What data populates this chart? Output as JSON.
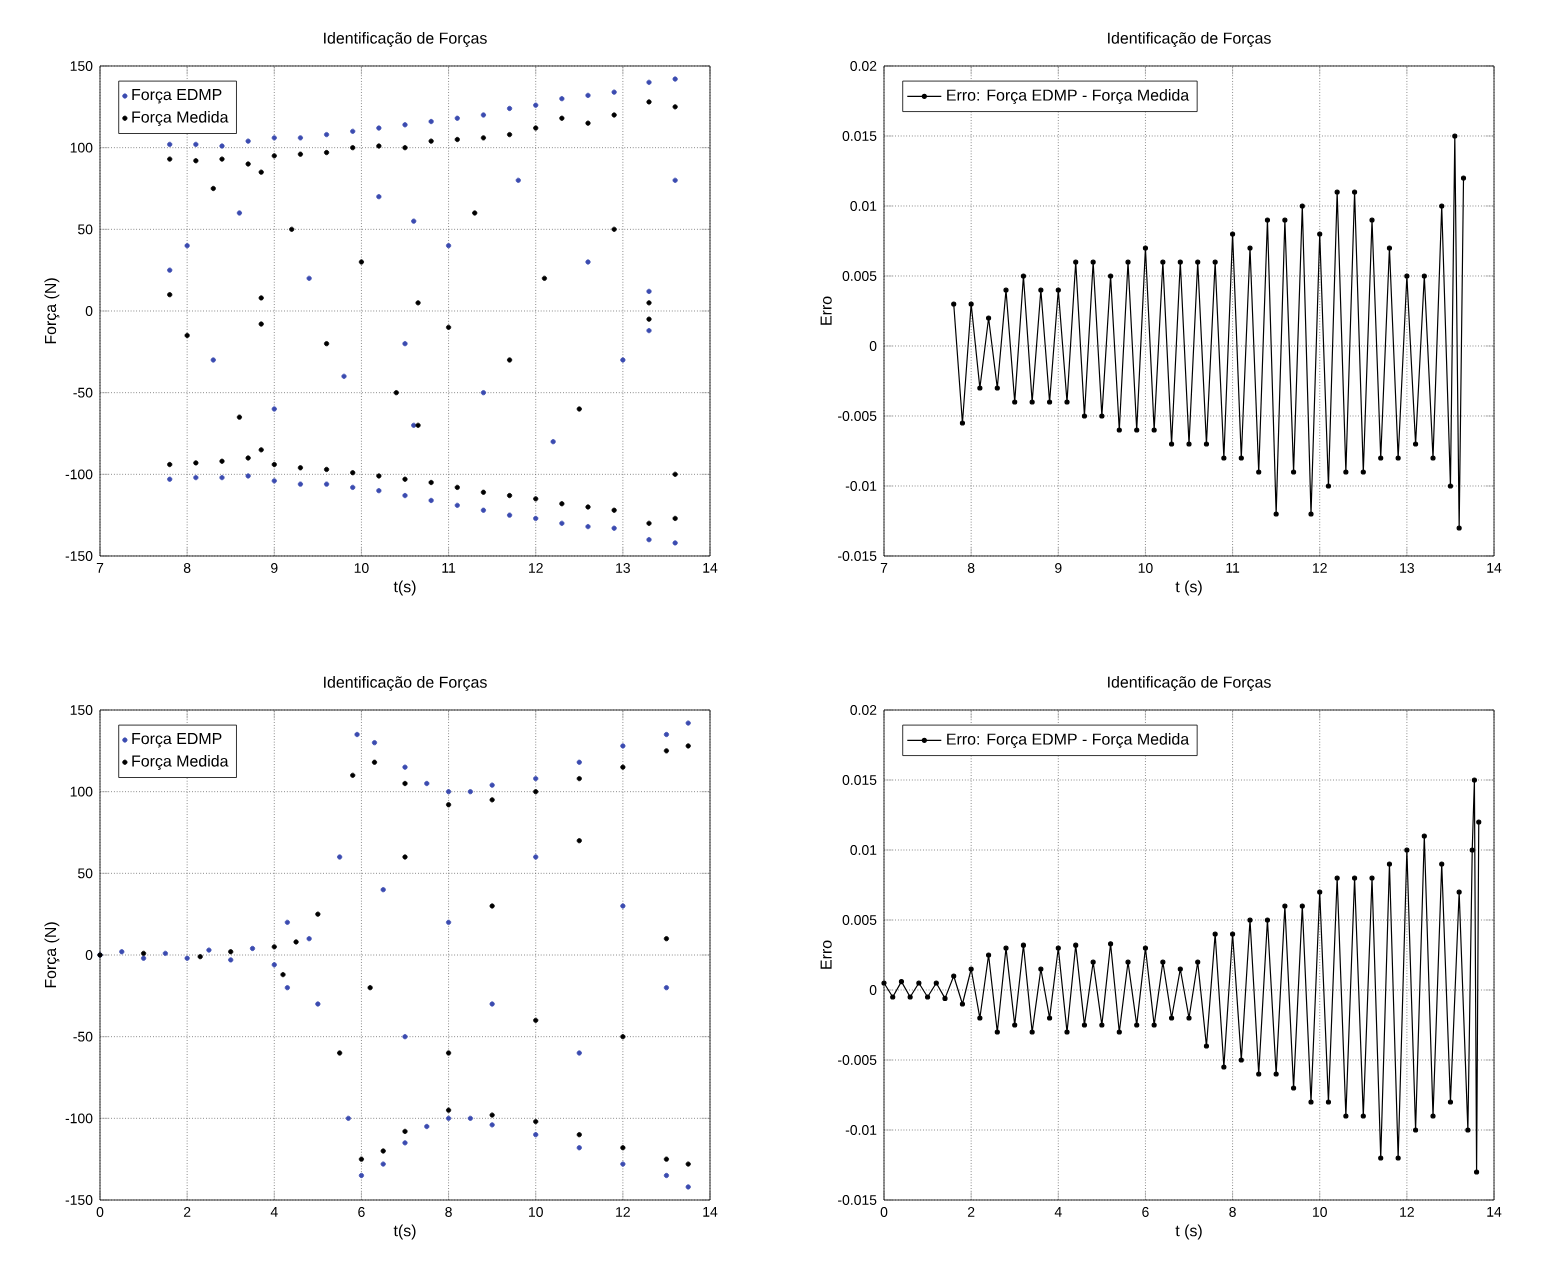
{
  "chart_data": [
    {
      "type": "scatter",
      "title": "Identificação de Forças",
      "xlabel": "t(s)",
      "ylabel": "Força (N)",
      "xlim": [
        7,
        14
      ],
      "ylim": [
        -150,
        150
      ],
      "xticks": [
        7,
        8,
        9,
        10,
        11,
        12,
        13,
        14
      ],
      "yticks": [
        -150,
        -100,
        -50,
        0,
        50,
        100,
        150
      ],
      "grid": true,
      "legend": "top left",
      "marker": "circle",
      "series": [
        {
          "name": "Força EDMP",
          "color": "#3b4bb0",
          "x": [
            7.8,
            8.1,
            8.4,
            8.7,
            9.0,
            9.3,
            9.6,
            9.9,
            10.2,
            10.5,
            10.8,
            11.1,
            11.4,
            11.7,
            12.0,
            12.3,
            12.6,
            12.9,
            13.3,
            13.6,
            7.8,
            8.1,
            8.4,
            8.7,
            9.0,
            9.3,
            9.6,
            9.9,
            10.2,
            10.5,
            10.8,
            11.1,
            11.4,
            11.7,
            12.0,
            12.3,
            12.6,
            12.9,
            13.3,
            13.6,
            7.8,
            8.0,
            8.3,
            8.6,
            9.0,
            9.4,
            9.8,
            10.2,
            10.5,
            10.6,
            10.6,
            11.0,
            11.4,
            11.8,
            12.2,
            12.6,
            13.0,
            13.3,
            13.3,
            13.6
          ],
          "values": [
            102,
            102,
            101,
            104,
            106,
            106,
            108,
            110,
            112,
            114,
            116,
            118,
            120,
            124,
            126,
            130,
            132,
            134,
            140,
            142,
            -103,
            -102,
            -102,
            -101,
            -104,
            -106,
            -106,
            -108,
            -110,
            -113,
            -116,
            -119,
            -122,
            -125,
            -127,
            -130,
            -132,
            -133,
            -140,
            -142,
            25,
            40,
            -30,
            60,
            -60,
            20,
            -40,
            70,
            -20,
            55,
            -70,
            40,
            -50,
            80,
            -80,
            30,
            -30,
            -12,
            12,
            80
          ]
        },
        {
          "name": "Força Medida",
          "color": "#000000",
          "x": [
            7.8,
            8.1,
            8.4,
            8.7,
            8.85,
            9.0,
            9.3,
            9.6,
            9.9,
            10.2,
            10.5,
            10.8,
            11.1,
            11.4,
            11.7,
            12.0,
            12.3,
            12.6,
            12.9,
            13.3,
            13.6,
            7.8,
            8.1,
            8.4,
            8.7,
            8.85,
            9.0,
            9.3,
            9.6,
            9.9,
            10.2,
            10.5,
            10.8,
            11.1,
            11.4,
            11.7,
            12.0,
            12.3,
            12.6,
            12.9,
            13.3,
            13.6,
            7.8,
            8.0,
            8.3,
            8.6,
            8.85,
            8.85,
            9.2,
            9.6,
            10.0,
            10.4,
            10.65,
            10.65,
            11.0,
            11.3,
            11.7,
            12.1,
            12.5,
            12.9,
            13.3,
            13.3,
            13.6
          ],
          "values": [
            93,
            92,
            93,
            90,
            85,
            95,
            96,
            97,
            100,
            101,
            100,
            104,
            105,
            106,
            108,
            112,
            118,
            115,
            120,
            128,
            125,
            -94,
            -93,
            -92,
            -90,
            -85,
            -94,
            -96,
            -97,
            -99,
            -101,
            -103,
            -105,
            -108,
            -111,
            -113,
            -115,
            -118,
            -120,
            -122,
            -130,
            -127,
            10,
            -15,
            75,
            -65,
            8,
            -8,
            50,
            -20,
            30,
            -50,
            5,
            -70,
            -10,
            60,
            -30,
            20,
            -60,
            50,
            5,
            -5,
            -100
          ]
        }
      ]
    },
    {
      "type": "line",
      "title": "Identificação de Forças",
      "xlabel": "t (s)",
      "ylabel": "Erro",
      "xlim": [
        7,
        14
      ],
      "ylim": [
        -0.015,
        0.02
      ],
      "xticks": [
        7,
        8,
        9,
        10,
        11,
        12,
        13,
        14
      ],
      "yticks": [
        -0.015,
        -0.01,
        -0.005,
        0,
        0.005,
        0.01,
        0.015,
        0.02
      ],
      "grid": true,
      "legend": "top left",
      "marker": "circle",
      "line_style": "solid",
      "series": [
        {
          "name": "Erro: Força EDMP - Força Medida",
          "color": "#000000",
          "x": [
            7.8,
            7.9,
            8.0,
            8.1,
            8.2,
            8.3,
            8.4,
            8.5,
            8.6,
            8.7,
            8.8,
            8.9,
            9.0,
            9.1,
            9.2,
            9.3,
            9.4,
            9.5,
            9.6,
            9.7,
            9.8,
            9.9,
            10.0,
            10.1,
            10.2,
            10.3,
            10.4,
            10.5,
            10.6,
            10.7,
            10.8,
            10.9,
            11.0,
            11.1,
            11.2,
            11.3,
            11.4,
            11.5,
            11.6,
            11.7,
            11.8,
            11.9,
            12.0,
            12.1,
            12.2,
            12.3,
            12.4,
            12.5,
            12.6,
            12.7,
            12.8,
            12.9,
            13.0,
            13.1,
            13.2,
            13.3,
            13.4,
            13.5,
            13.55,
            13.6,
            13.65
          ],
          "values": [
            0.003,
            -0.0055,
            0.003,
            -0.003,
            0.002,
            -0.003,
            0.004,
            -0.004,
            0.005,
            -0.004,
            0.004,
            -0.004,
            0.004,
            -0.004,
            0.006,
            -0.005,
            0.006,
            -0.005,
            0.005,
            -0.006,
            0.006,
            -0.006,
            0.007,
            -0.006,
            0.006,
            -0.007,
            0.006,
            -0.007,
            0.006,
            -0.007,
            0.006,
            -0.008,
            0.008,
            -0.008,
            0.007,
            -0.009,
            0.009,
            -0.012,
            0.009,
            -0.009,
            0.01,
            -0.012,
            0.008,
            -0.01,
            0.011,
            -0.009,
            0.011,
            -0.009,
            0.009,
            -0.008,
            0.007,
            -0.008,
            0.005,
            -0.007,
            0.005,
            -0.008,
            0.01,
            -0.01,
            0.015,
            -0.013,
            0.012
          ]
        }
      ]
    },
    {
      "type": "scatter",
      "title": "Identificação de Forças",
      "xlabel": "t(s)",
      "ylabel": "Força (N)",
      "xlim": [
        0,
        14
      ],
      "ylim": [
        -150,
        150
      ],
      "xticks": [
        0,
        2,
        4,
        6,
        8,
        10,
        12,
        14
      ],
      "yticks": [
        -150,
        -100,
        -50,
        0,
        50,
        100,
        150
      ],
      "grid": true,
      "legend": "top left",
      "marker": "circle",
      "series": [
        {
          "name": "Força EDMP",
          "color": "#3b4bb0",
          "x": [
            0,
            0.5,
            1,
            1.5,
            2,
            2.5,
            3,
            3.5,
            4,
            4.3,
            4.3,
            4.8,
            5.0,
            5.5,
            5.7,
            5.9,
            6.0,
            6.3,
            6.5,
            7.0,
            7.0,
            7.5,
            7.5,
            8,
            8,
            8.5,
            8.5,
            9,
            9,
            10,
            10,
            11,
            11,
            12,
            12,
            13,
            13,
            13.5,
            13.5,
            6.5,
            7,
            8,
            9,
            10,
            11,
            12,
            13
          ],
          "values": [
            0,
            2,
            -2,
            1,
            -2,
            3,
            -3,
            4,
            -6,
            20,
            -20,
            10,
            -30,
            60,
            -100,
            135,
            -135,
            130,
            -128,
            115,
            -115,
            105,
            -105,
            100,
            -100,
            100,
            -100,
            104,
            -104,
            108,
            -110,
            118,
            -118,
            128,
            -128,
            135,
            -135,
            142,
            -142,
            40,
            -50,
            20,
            -30,
            60,
            -60,
            30,
            -20
          ]
        },
        {
          "name": "Força Medida",
          "color": "#000000",
          "x": [
            0,
            1,
            2.3,
            3,
            4,
            4.2,
            4.5,
            5,
            5.5,
            5.8,
            6,
            6.3,
            6.5,
            7,
            7,
            8,
            8,
            9,
            9,
            10,
            10,
            11,
            11,
            12,
            12,
            13,
            13,
            13.5,
            13.5,
            6.2,
            7,
            8,
            9,
            10,
            11,
            12,
            13
          ],
          "values": [
            0,
            1,
            -1,
            2,
            5,
            -12,
            8,
            25,
            -60,
            110,
            -125,
            118,
            -120,
            105,
            -108,
            92,
            -95,
            95,
            -98,
            100,
            -102,
            108,
            -110,
            115,
            -118,
            125,
            -125,
            128,
            -128,
            -20,
            60,
            -60,
            30,
            -40,
            70,
            -50,
            10
          ]
        }
      ]
    },
    {
      "type": "line",
      "title": "Identificação de Forças",
      "xlabel": "t (s)",
      "ylabel": "Erro",
      "xlim": [
        0,
        14
      ],
      "ylim": [
        -0.015,
        0.02
      ],
      "xticks": [
        0,
        2,
        4,
        6,
        8,
        10,
        12,
        14
      ],
      "yticks": [
        -0.015,
        -0.01,
        -0.005,
        0,
        0.005,
        0.01,
        0.015,
        0.02
      ],
      "grid": true,
      "legend": "top left",
      "marker": "circle",
      "line_style": "solid",
      "series": [
        {
          "name": "Erro: Força EDMP - Força Medida",
          "color": "#000000",
          "x": [
            0,
            0.2,
            0.4,
            0.6,
            0.8,
            1.0,
            1.2,
            1.4,
            1.6,
            1.8,
            2.0,
            2.2,
            2.4,
            2.6,
            2.8,
            3.0,
            3.2,
            3.4,
            3.6,
            3.8,
            4.0,
            4.2,
            4.4,
            4.6,
            4.8,
            5.0,
            5.2,
            5.4,
            5.6,
            5.8,
            6.0,
            6.2,
            6.4,
            6.6,
            6.8,
            7.0,
            7.2,
            7.4,
            7.6,
            7.8,
            8.0,
            8.2,
            8.4,
            8.6,
            8.8,
            9.0,
            9.2,
            9.4,
            9.6,
            9.8,
            10.0,
            10.2,
            10.4,
            10.6,
            10.8,
            11.0,
            11.2,
            11.4,
            11.6,
            11.8,
            12.0,
            12.2,
            12.4,
            12.6,
            12.8,
            13.0,
            13.2,
            13.4,
            13.5,
            13.55,
            13.6,
            13.65
          ],
          "values": [
            0.0005,
            -0.0005,
            0.0006,
            -0.0005,
            0.0005,
            -0.0005,
            0.0005,
            -0.0006,
            0.001,
            -0.001,
            0.0015,
            -0.002,
            0.0025,
            -0.003,
            0.003,
            -0.0025,
            0.0032,
            -0.003,
            0.0015,
            -0.002,
            0.003,
            -0.003,
            0.0032,
            -0.0025,
            0.002,
            -0.0025,
            0.0033,
            -0.003,
            0.002,
            -0.0025,
            0.003,
            -0.0025,
            0.002,
            -0.002,
            0.0015,
            -0.002,
            0.002,
            -0.004,
            0.004,
            -0.0055,
            0.004,
            -0.005,
            0.005,
            -0.006,
            0.005,
            -0.006,
            0.006,
            -0.007,
            0.006,
            -0.008,
            0.007,
            -0.008,
            0.008,
            -0.009,
            0.008,
            -0.009,
            0.008,
            -0.012,
            0.009,
            -0.012,
            0.01,
            -0.01,
            0.011,
            -0.009,
            0.009,
            -0.008,
            0.007,
            -0.01,
            0.01,
            0.015,
            -0.013,
            0.012
          ]
        }
      ]
    }
  ]
}
